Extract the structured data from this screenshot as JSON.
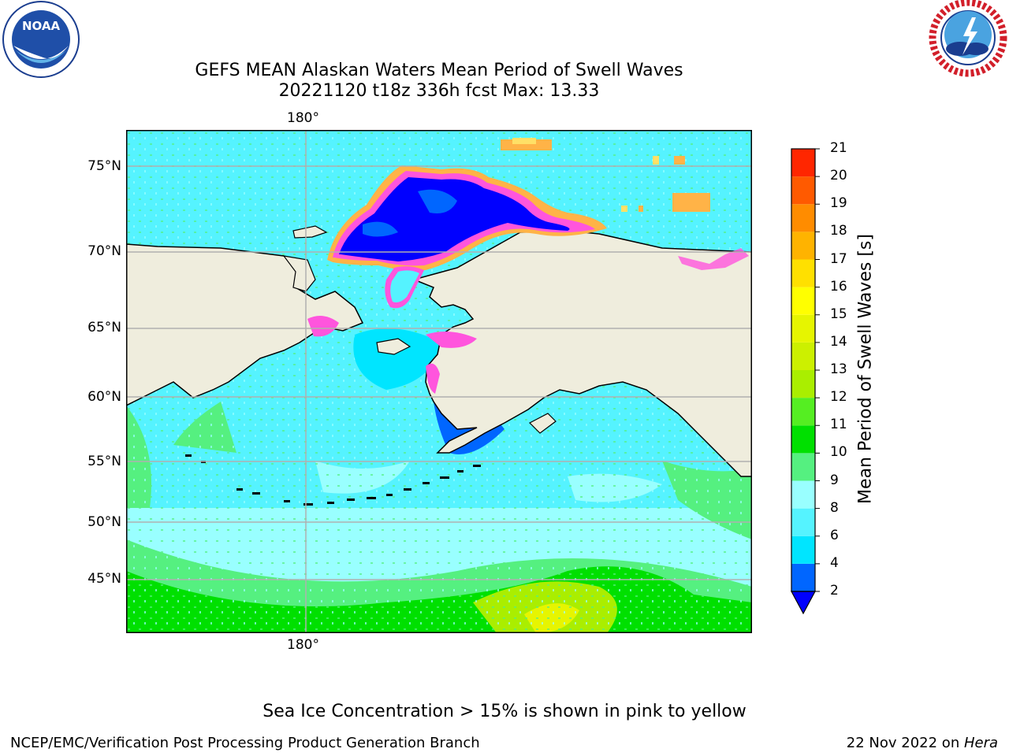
{
  "title_line1": "GEFS MEAN Alaskan Waters Mean Period of Swell Waves",
  "title_line2": "20221120 t18z 336h fcst   Max: 13.33",
  "map": {
    "lon_label_top": "180°",
    "lon_label_bottom": "180°",
    "lat_labels": [
      "75°N",
      "70°N",
      "65°N",
      "60°N",
      "55°N",
      "50°N",
      "45°N"
    ],
    "land_color": "#efeddd",
    "ice_colors": [
      "#ff55dd",
      "#ffb347",
      "#ffe066"
    ]
  },
  "colorbar": {
    "label": "Mean Period of Swell Waves [s]",
    "ticks": [
      "2",
      "4",
      "6",
      "8",
      "9",
      "10",
      "11",
      "12",
      "13",
      "14",
      "15",
      "16",
      "17",
      "18",
      "19",
      "20",
      "21"
    ],
    "colors": [
      "#0066ff",
      "#00e5ff",
      "#55f3ff",
      "#99ffff",
      "#55f080",
      "#00e000",
      "#55ee22",
      "#aaee00",
      "#ccf000",
      "#e6f500",
      "#ffff00",
      "#ffe000",
      "#ffb300",
      "#ff8c00",
      "#ff5a00",
      "#ff2600"
    ],
    "under_color": "#0000ff"
  },
  "note": "Sea Ice Concentration > 15% is shown in pink to yellow",
  "footer_left": "NCEP/EMC/Verification Post Processing Product Generation Branch",
  "footer_right_prefix": "22 Nov 2022 on ",
  "footer_right_host": "Hera",
  "logos": {
    "noaa_text": "NOAA",
    "noaa_ring": "NATIONAL OCEANIC AND ATMOSPHERIC ADMINISTRATION · U.S. DEPARTMENT OF COMMERCE",
    "nws_ring": "NATIONAL WEATHER SERVICE"
  }
}
